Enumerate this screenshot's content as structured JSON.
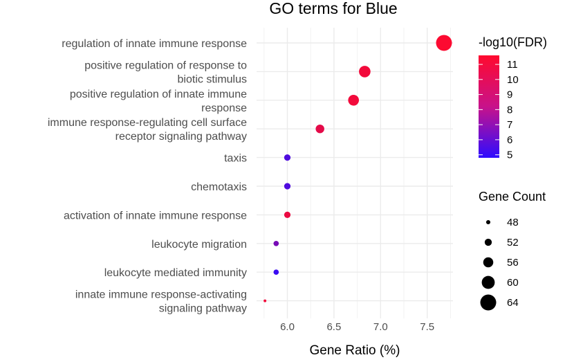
{
  "chart_data": {
    "type": "scatter",
    "title": "GO terms for Blue",
    "xlabel": "Gene Ratio (%)",
    "ylabel": "",
    "xlim": [
      5.72,
      7.8
    ],
    "x_ticks": [
      6.0,
      6.5,
      7.0,
      7.5
    ],
    "x_tick_labels": [
      "6.0",
      "6.5",
      "7.0",
      "7.5"
    ],
    "grid": true,
    "legend_position": "right",
    "points": [
      {
        "term_lines": [
          "regulation of innate immune response"
        ],
        "x": 7.68,
        "fdr": 11.2,
        "count": 64
      },
      {
        "term_lines": [
          "positive regulation of response to",
          "biotic stimulus"
        ],
        "x": 6.83,
        "fdr": 10.9,
        "count": 58
      },
      {
        "term_lines": [
          "positive regulation of innate immune",
          "response"
        ],
        "x": 6.71,
        "fdr": 10.9,
        "count": 57
      },
      {
        "term_lines": [
          "immune response-regulating cell surface",
          "receptor signaling pathway"
        ],
        "x": 6.35,
        "fdr": 10.5,
        "count": 54
      },
      {
        "term_lines": [
          "taxis"
        ],
        "x": 6.0,
        "fdr": 6.0,
        "count": 51
      },
      {
        "term_lines": [
          "chemotaxis"
        ],
        "x": 6.0,
        "fdr": 6.0,
        "count": 51
      },
      {
        "term_lines": [
          "activation of innate immune response"
        ],
        "x": 6.0,
        "fdr": 10.7,
        "count": 51
      },
      {
        "term_lines": [
          "leukocyte migration"
        ],
        "x": 5.88,
        "fdr": 7.2,
        "count": 49.5
      },
      {
        "term_lines": [
          "leukocyte mediated immunity"
        ],
        "x": 5.88,
        "fdr": 5.4,
        "count": 49.5
      },
      {
        "term_lines": [
          "innate immune response-activating",
          "signaling pathway"
        ],
        "x": 5.76,
        "fdr": 10.9,
        "count": 46
      }
    ],
    "color_legend": {
      "title": "-log10(FDR)",
      "ticks": [
        11,
        10,
        9,
        8,
        7,
        6,
        5
      ],
      "range": [
        5,
        11.3
      ],
      "low_color": "#2e0cff",
      "high_color": "#ff0a2e"
    },
    "size_legend": {
      "title": "Gene Count",
      "values": [
        48,
        52,
        56,
        60,
        64
      ]
    }
  }
}
